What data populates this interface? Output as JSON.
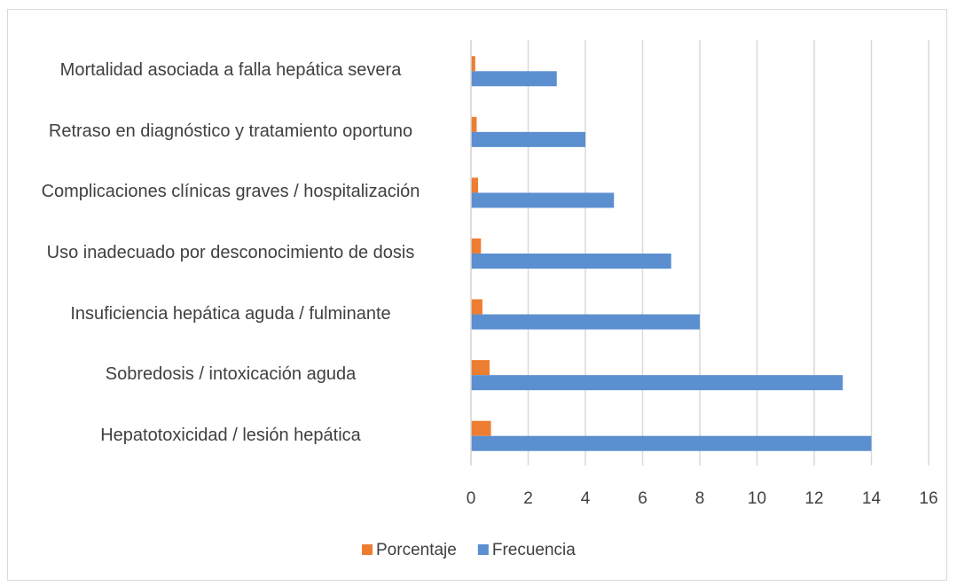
{
  "chart_data": {
    "type": "barh",
    "categories": [
      "Mortalidad asociada a falla hepática severa",
      "Retraso en diagnóstico y tratamiento oportuno",
      "Complicaciones clínicas graves / hospitalización",
      "Uso inadecuado por desconocimiento de dosis",
      "Insuficiencia hepática aguda / fulminante",
      "Sobredosis / intoxicación aguda",
      "Hepatotoxicidad / lesión hepática"
    ],
    "series": [
      {
        "name": "Porcentaje",
        "color": "#ed7d31",
        "values": [
          0.15,
          0.2,
          0.25,
          0.35,
          0.4,
          0.65,
          0.7
        ]
      },
      {
        "name": "Frecuencia",
        "color": "#5b8fd0",
        "values": [
          3,
          4,
          5,
          7,
          8,
          13,
          14
        ]
      }
    ],
    "xlim": [
      0,
      16
    ],
    "xticks": [
      0,
      2,
      4,
      6,
      8,
      10,
      12,
      14,
      16
    ],
    "grid": true,
    "legend": "bottom"
  }
}
